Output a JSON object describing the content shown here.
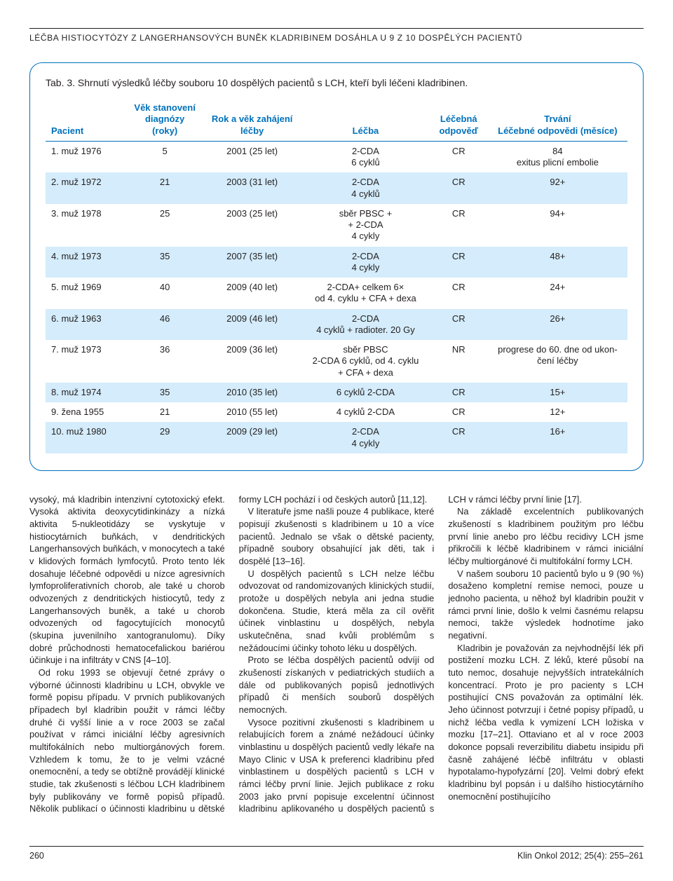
{
  "running_head": "LÉČBA HISTIOCYTÓZY Z LANGERHANSOVÝCH BUNĚK KLADRIBINEM DOSÁHLA U 9 Z 10 DOSPĚLÝCH PACIENTŮ",
  "table": {
    "caption": "Tab. 3. Shrnutí výsledků léčby souboru 10 dospělých pacientů s LCH, kteří byli léčeni kladribinen.",
    "accent_color": "#0071bc",
    "zebra_color": "#d4ecfb",
    "columns": [
      {
        "key": "pacient",
        "label": "Pacient",
        "align": "left",
        "width": "14%"
      },
      {
        "key": "vek",
        "label": "Věk stanovení\ndiagnózy (roky)",
        "align": "center",
        "width": "13%"
      },
      {
        "key": "rok",
        "label": "Rok a věk zahájení\nléčby",
        "align": "center",
        "width": "17%"
      },
      {
        "key": "lecba",
        "label": "Léčba",
        "align": "center",
        "width": "22%"
      },
      {
        "key": "odpoved",
        "label": "Léčebná\nodpověď",
        "align": "center",
        "width": "10%"
      },
      {
        "key": "trvani",
        "label": "Trvání\nLéčebné odpovědi (měsíce)",
        "align": "center",
        "width": "24%"
      }
    ],
    "rows": [
      {
        "pacient": "1. muž 1976",
        "vek": "5",
        "rok": "2001 (25 let)",
        "lecba": "2-CDA\n6 cyklů",
        "odpoved": "CR",
        "trvani": "84\nexitus plicní embolie"
      },
      {
        "pacient": "2. muž 1972",
        "vek": "21",
        "rok": "2003 (31 let)",
        "lecba": "2-CDA\n4 cyklů",
        "odpoved": "CR",
        "trvani": "92+"
      },
      {
        "pacient": "3. muž 1978",
        "vek": "25",
        "rok": "2003 (25 let)",
        "lecba": "sběr PBSC +\n+ 2-CDA\n4 cykly",
        "odpoved": "CR",
        "trvani": "94+"
      },
      {
        "pacient": "4. muž 1973",
        "vek": "35",
        "rok": "2007 (35 let)",
        "lecba": "2-CDA\n4 cykly",
        "odpoved": "CR",
        "trvani": "48+"
      },
      {
        "pacient": "5. muž 1969",
        "vek": "40",
        "rok": "2009 (40 let)",
        "lecba": "2-CDA+ celkem 6×\nod 4. cyklu + CFA + dexa",
        "odpoved": "CR",
        "trvani": "24+"
      },
      {
        "pacient": "6. muž 1963",
        "vek": "46",
        "rok": "2009 (46 let)",
        "lecba": "2-CDA\n4 cyklů + radioter. 20 Gy",
        "odpoved": "CR",
        "trvani": "26+"
      },
      {
        "pacient": "7. muž 1973",
        "vek": "36",
        "rok": "2009 (36 let)",
        "lecba": "sběr PBSC\n2-CDA 6 cyklů, od 4. cyklu\n+ CFA + dexa",
        "odpoved": "NR",
        "trvani": "progrese do 60. dne od ukon-\nčení léčby"
      },
      {
        "pacient": "8. muž 1974",
        "vek": "35",
        "rok": "2010 (35 let)",
        "lecba": "6 cyklů 2-CDA",
        "odpoved": "CR",
        "trvani": "15+"
      },
      {
        "pacient": "9. žena 1955",
        "vek": "21",
        "rok": "2010 (55 let)",
        "lecba": "4 cyklů 2-CDA",
        "odpoved": "CR",
        "trvani": "12+"
      },
      {
        "pacient": "10. muž 1980",
        "vek": "29",
        "rok": "2009 (29 let)",
        "lecba": "2-CDA\n4 cykly",
        "odpoved": "CR",
        "trvani": "16+"
      }
    ]
  },
  "body_text": "vysoký, má kladribin intenzivní cytotoxický efekt. Vysoká aktivita deoxycytidinkinázy a nízká aktivita 5-nukleotidázy se vyskytuje v histiocytárních buňkách, v dendritických Langerhansových buňkách, v monocytech a také v klidových formách lymfocytů. Proto tento lék dosahuje léčebné odpovědi u nízce agresivních lymfoproliferativních chorob, ale také u chorob odvozených z dendritických histiocytů, tedy z Langerhansových buněk, a také u chorob odvozených od fagocytujících monocytů (skupina juvenilního xantogranulomu). Díky dobré průchodnosti hematocefalickou bariérou účinkuje i na infiltráty v CNS [4–10].\n Od roku 1993 se objevují četné zprávy o výborné účinnosti kladribinu u LCH, obvykle ve formě popisu případu. V prvních publikovaných případech byl kladribin použit v rámci léčby druhé či vyšší linie a v roce 2003 se začal používat v rámci iniciální léčby agresivních multifokálních nebo multiorgánových forem. Vzhledem k tomu, že to je velmi vzácné onemocnění, a tedy se obtížně provádějí klinické studie, tak zkušenosti s léčbou LCH kladribinem byly publikovány ve formě popisů případů. Několik publikací o účinnosti kladribinu u dětské formy LCH pochází i od českých autorů [11,12].\n V literatuře jsme našli pouze 4 publikace, které popisují zkušenosti s kladribinem u 10 a více pacientů. Jednalo se však o dětské pacienty, případně soubory obsahující jak děti, tak i dospělé [13–16].\n U dospělých pacientů s LCH nelze léčbu odvozovat od randomizovaných klinických studií, protože u dospělých nebyla ani jedna studie dokončena. Studie, která měla za cíl ověřit účinek vinblastinu u dospělých, nebyla uskutečněna, snad kvůli problémům s nežádoucími účinky tohoto léku u dospělých.\n Proto se léčba dospělých pacientů odvíjí od zkušeností získaných v pediatrických studiích a dále od publikovaných popisů jednotlivých případů či menších souborů dospělých nemocných.\n Vysoce pozitivní zkušenosti s kladribinem u relabujících forem a známé nežádoucí účinky vinblastinu u dospělých pacientů vedly lékaře na Mayo Clinic v USA k preferenci kladribinu před vinblastinem u dospělých pacientů s LCH v rámci léčby první linie. Jejich publikace z roku 2003 jako první popisuje excelentní účinnost kladribinu aplikovaného u dospělých pacientů s LCH v rámci léčby první linie [17].\n Na základě excelentních publikovaných zkušeností s kladribinem použitým pro léčbu první linie anebo pro léčbu recidivy LCH jsme přikročili k léčbě kladribinem v rámci iniciální léčby multiorgánové či multifokální formy LCH.\n V našem souboru 10 pacientů bylo u 9 (90 %) dosaženo kompletní remise nemoci, pouze u jednoho pacienta, u něhož byl kladribin použit v rámci první linie, došlo k velmi časnému relapsu nemoci, takže výsledek hodnotíme jako negativní.\n Kladribin je považován za nejvhodnější lék při postižení mozku LCH. Z léků, které působí na tuto nemoc, dosahuje nejvyšších intratekálních koncentrací. Proto je pro pacienty s LCH postihující CNS považován za optimální lék. Jeho účinnost potvrzují i četné popisy případů, u nichž léčba vedla k vymizení LCH ložiska v mozku [17–21]. Ottaviano et al v roce 2003 dokonce popsali reverzibilitu diabetu insipidu při časně zahájené léčbě infiltrátu v oblasti hypotalamo-hypofyzární [20]. Velmi dobrý efekt kladribinu byl popsán i u dalšího histiocytárního onemocnění postihujícího",
  "footer": {
    "page_number": "260",
    "citation": "Klin Onkol 2012; 25(4): 255–261"
  }
}
